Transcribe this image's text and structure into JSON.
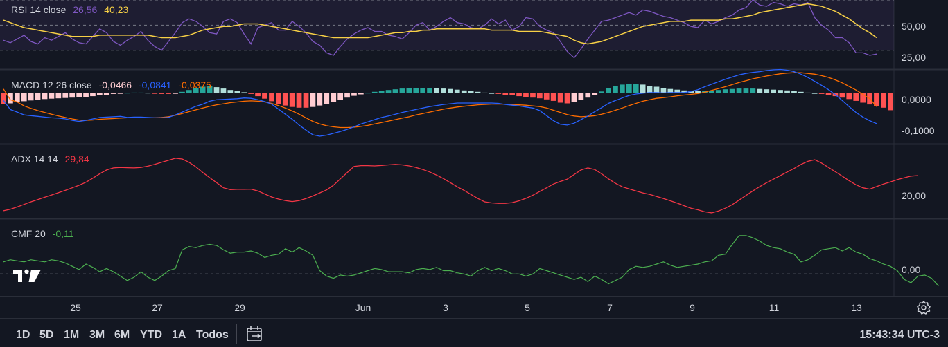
{
  "chart_data": [
    {
      "name": "RSI",
      "type": "line",
      "legend": {
        "label": "RSI 14 close",
        "values": [
          "26,56",
          "40,23"
        ]
      },
      "colors": {
        "rsi": "#7e57c2",
        "ma": "#f7d046",
        "band_fill": "#7e57c2"
      },
      "ylim": [
        15,
        70
      ],
      "yticks": [
        {
          "v": 50,
          "label": "50,00"
        },
        {
          "v": 25,
          "label": "25,00"
        }
      ],
      "bands": [
        30,
        50,
        70
      ],
      "series": [
        {
          "values": [
            38,
            36,
            39,
            42,
            37,
            35,
            40,
            38,
            41,
            44,
            39,
            36,
            35,
            41,
            47,
            44,
            37,
            34,
            38,
            41,
            45,
            38,
            33,
            30,
            37,
            44,
            52,
            55,
            53,
            49,
            44,
            43,
            53,
            55,
            52,
            43,
            35,
            48,
            50,
            52,
            46,
            46,
            53,
            49,
            44,
            37,
            34,
            28,
            26,
            33,
            39,
            43,
            46,
            48,
            45,
            45,
            42,
            41,
            39,
            44,
            50,
            52,
            46,
            49,
            53,
            56,
            52,
            51,
            48,
            47,
            50,
            55,
            51,
            54,
            46,
            49,
            56,
            55,
            49,
            46,
            44,
            37,
            29,
            24,
            31,
            39,
            46,
            53,
            54,
            56,
            58,
            60,
            58,
            62,
            61,
            59,
            57,
            56,
            54,
            52,
            49,
            48,
            54,
            51,
            53,
            56,
            58,
            62,
            64,
            70,
            66,
            65,
            68,
            67,
            65,
            67,
            66,
            68,
            56,
            50,
            46,
            40,
            40,
            36,
            28,
            28,
            26,
            27
          ]
        },
        {
          "values": [
            54,
            52,
            50,
            48,
            47,
            46,
            45,
            44,
            43,
            42,
            41,
            41,
            41,
            41,
            42,
            42,
            42,
            42,
            42,
            42,
            42,
            42,
            41,
            40,
            40,
            40,
            41,
            42,
            44,
            46,
            47,
            48,
            49,
            49,
            50,
            51,
            51,
            51,
            50,
            49,
            48,
            47,
            46,
            45,
            44,
            43,
            42,
            41,
            40,
            40,
            40,
            40,
            40,
            40,
            41,
            42,
            43,
            44,
            44,
            45,
            45,
            46,
            46,
            47,
            47,
            47,
            47,
            47,
            47,
            47,
            47,
            46,
            46,
            46,
            46,
            45,
            45,
            45,
            45,
            44,
            43,
            42,
            41,
            38,
            36,
            35,
            36,
            37,
            39,
            41,
            43,
            45,
            47,
            49,
            50,
            51,
            52,
            53,
            53,
            53,
            54,
            54,
            54,
            54,
            54,
            55,
            55,
            56,
            57,
            58,
            60,
            61,
            62,
            63,
            64,
            65,
            66,
            67,
            66,
            65,
            63,
            61,
            58,
            55,
            51,
            47,
            44,
            40
          ]
        }
      ]
    },
    {
      "name": "MACD",
      "type": "line",
      "legend": {
        "label": "MACD 12 26 close",
        "values": [
          "-0,0466",
          "-0,0841",
          "-0,0375"
        ]
      },
      "colors": {
        "macd": "#2962ff",
        "signal": "#ff6d00",
        "hist_up_strong": "#26a69a",
        "hist_up_weak": "#b2dfdb",
        "hist_down_strong": "#ff5252",
        "hist_down_weak": "#ffcdd2"
      },
      "ylim": [
        -0.14,
        0.065
      ],
      "yticks": [
        {
          "v": 0,
          "label": "0,0000"
        },
        {
          "v": -0.1,
          "label": "-0,1000"
        }
      ],
      "series": [
        {
          "name": "histogram",
          "values": [
            -0.03,
            -0.028,
            -0.025,
            -0.022,
            -0.02,
            -0.018,
            -0.016,
            -0.015,
            -0.014,
            -0.013,
            -0.012,
            -0.011,
            -0.01,
            -0.008,
            -0.006,
            -0.004,
            -0.002,
            -0.001,
            0.001,
            0.002,
            0.002,
            0.001,
            -0.001,
            -0.002,
            -0.002,
            -0.001,
            0.004,
            0.009,
            0.014,
            0.018,
            0.02,
            0.017,
            0.013,
            0.009,
            0.006,
            0.003,
            -0.002,
            -0.008,
            -0.015,
            -0.022,
            -0.029,
            -0.034,
            -0.038,
            -0.04,
            -0.04,
            -0.038,
            -0.034,
            -0.029,
            -0.024,
            -0.018,
            -0.012,
            -0.007,
            -0.003,
            0.001,
            0.004,
            0.007,
            0.009,
            0.011,
            0.013,
            0.014,
            0.015,
            0.015,
            0.015,
            0.014,
            0.013,
            0.012,
            0.01,
            0.008,
            0.006,
            0.004,
            0.002,
            0.0,
            -0.002,
            -0.004,
            -0.006,
            -0.008,
            -0.01,
            -0.012,
            -0.014,
            -0.017,
            -0.021,
            -0.026,
            -0.028,
            -0.024,
            -0.018,
            -0.012,
            -0.004,
            0.005,
            0.014,
            0.02,
            0.024,
            0.026,
            0.026,
            0.024,
            0.021,
            0.018,
            0.015,
            0.012,
            0.01,
            0.008,
            0.007,
            0.006,
            0.006,
            0.007,
            0.009,
            0.011,
            0.012,
            0.013,
            0.013,
            0.013,
            0.012,
            0.011,
            0.01,
            0.009,
            0.008,
            0.006,
            0.004,
            0.002,
            0.0,
            -0.002,
            -0.005,
            -0.008,
            -0.012,
            -0.016,
            -0.021,
            -0.026,
            -0.031,
            -0.035,
            -0.04,
            -0.047
          ]
        },
        {
          "name": "macd",
          "values": [
            -0.02,
            -0.045,
            -0.052,
            -0.06,
            -0.062,
            -0.064,
            -0.066,
            -0.068,
            -0.069,
            -0.071,
            -0.075,
            -0.078,
            -0.075,
            -0.071,
            -0.067,
            -0.066,
            -0.065,
            -0.064,
            -0.067,
            -0.066,
            -0.066,
            -0.067,
            -0.068,
            -0.068,
            -0.067,
            -0.06,
            -0.052,
            -0.044,
            -0.036,
            -0.03,
            -0.022,
            -0.018,
            -0.017,
            -0.016,
            -0.015,
            -0.013,
            -0.014,
            -0.018,
            -0.023,
            -0.03,
            -0.044,
            -0.058,
            -0.072,
            -0.088,
            -0.102,
            -0.115,
            -0.119,
            -0.116,
            -0.111,
            -0.106,
            -0.1,
            -0.093,
            -0.085,
            -0.079,
            -0.073,
            -0.067,
            -0.063,
            -0.058,
            -0.053,
            -0.049,
            -0.045,
            -0.041,
            -0.037,
            -0.034,
            -0.031,
            -0.029,
            -0.027,
            -0.027,
            -0.027,
            -0.027,
            -0.027,
            -0.027,
            -0.028,
            -0.031,
            -0.033,
            -0.035,
            -0.038,
            -0.041,
            -0.048,
            -0.062,
            -0.076,
            -0.086,
            -0.088,
            -0.083,
            -0.073,
            -0.063,
            -0.051,
            -0.04,
            -0.028,
            -0.02,
            -0.013,
            -0.006,
            -0.002,
            0.0,
            0.002,
            0.002,
            0.001,
            0.002,
            0.002,
            0.002,
            0.005,
            0.01,
            0.018,
            0.025,
            0.032,
            0.039,
            0.045,
            0.051,
            0.055,
            0.058,
            0.06,
            0.063,
            0.065,
            0.066,
            0.064,
            0.06,
            0.053,
            0.044,
            0.033,
            0.022,
            0.01,
            -0.004,
            -0.02,
            -0.037,
            -0.053,
            -0.066,
            -0.076,
            -0.084
          ]
        },
        {
          "name": "signal",
          "values": [
            0.012,
            -0.018,
            -0.024,
            -0.035,
            -0.042,
            -0.048,
            -0.053,
            -0.058,
            -0.063,
            -0.067,
            -0.071,
            -0.074,
            -0.075,
            -0.074,
            -0.072,
            -0.071,
            -0.07,
            -0.069,
            -0.068,
            -0.068,
            -0.068,
            -0.068,
            -0.068,
            -0.067,
            -0.065,
            -0.061,
            -0.056,
            -0.051,
            -0.046,
            -0.041,
            -0.036,
            -0.032,
            -0.029,
            -0.026,
            -0.024,
            -0.022,
            -0.021,
            -0.022,
            -0.024,
            -0.028,
            -0.034,
            -0.041,
            -0.049,
            -0.058,
            -0.068,
            -0.078,
            -0.085,
            -0.09,
            -0.093,
            -0.095,
            -0.095,
            -0.094,
            -0.092,
            -0.089,
            -0.085,
            -0.081,
            -0.077,
            -0.073,
            -0.069,
            -0.065,
            -0.06,
            -0.056,
            -0.052,
            -0.048,
            -0.044,
            -0.041,
            -0.038,
            -0.036,
            -0.034,
            -0.032,
            -0.031,
            -0.03,
            -0.03,
            -0.03,
            -0.031,
            -0.032,
            -0.033,
            -0.035,
            -0.037,
            -0.041,
            -0.047,
            -0.053,
            -0.059,
            -0.063,
            -0.065,
            -0.064,
            -0.062,
            -0.058,
            -0.053,
            -0.047,
            -0.041,
            -0.034,
            -0.028,
            -0.022,
            -0.018,
            -0.014,
            -0.012,
            -0.01,
            -0.007,
            -0.005,
            -0.003,
            -0.001,
            0.003,
            0.008,
            0.013,
            0.018,
            0.024,
            0.03,
            0.035,
            0.04,
            0.044,
            0.048,
            0.051,
            0.054,
            0.056,
            0.057,
            0.057,
            0.055,
            0.053,
            0.049,
            0.044,
            0.037,
            0.029,
            0.019,
            0.009,
            -0.003,
            -0.015,
            -0.037
          ]
        }
      ]
    },
    {
      "name": "ADX",
      "type": "line",
      "legend": {
        "label": "ADX 14 14",
        "values": [
          "29,84"
        ]
      },
      "colors": {
        "adx": "#f23645"
      },
      "ylim": [
        13,
        42
      ],
      "yticks": [
        {
          "v": 20,
          "label": "20,00"
        }
      ],
      "series": [
        {
          "values": [
            16.0,
            16.6,
            17.5,
            18.5,
            19.5,
            20.4,
            21.3,
            22.2,
            23.1,
            24.0,
            25.0,
            26.0,
            27.2,
            28.8,
            30.5,
            32.0,
            32.8,
            33.0,
            32.9,
            32.8,
            33.0,
            33.5,
            34.2,
            35.0,
            35.8,
            36.6,
            36.3,
            35.0,
            33.2,
            31.0,
            29.0,
            27.0,
            25.0,
            24.3,
            24.4,
            24.4,
            24.5,
            23.8,
            22.6,
            21.4,
            20.6,
            20.0,
            19.6,
            20.0,
            20.8,
            21.8,
            23.0,
            24.2,
            26.0,
            28.5,
            31.0,
            33.4,
            33.7,
            33.7,
            33.6,
            33.8,
            34.0,
            34.2,
            34.0,
            33.6,
            33.0,
            32.2,
            31.2,
            30.0,
            28.6,
            27.0,
            25.4,
            24.0,
            22.4,
            20.8,
            19.5,
            19.1,
            18.9,
            18.9,
            19.2,
            19.9,
            20.9,
            22.1,
            23.6,
            25.0,
            26.5,
            27.5,
            28.4,
            30.2,
            32.0,
            32.8,
            32.2,
            30.5,
            28.5,
            26.8,
            25.4,
            24.6,
            23.8,
            23.0,
            22.4,
            21.6,
            20.8,
            19.9,
            19.0,
            18.0,
            17.0,
            16.4,
            15.6,
            15.2,
            15.9,
            17.0,
            18.4,
            20.2,
            22.0,
            23.8,
            25.5,
            27.0,
            28.4,
            29.8,
            31.2,
            32.6,
            34.2,
            35.4,
            36.0,
            34.7,
            33.0,
            31.3,
            29.6,
            27.8,
            26.2,
            25.0,
            24.5,
            25.5,
            26.5,
            27.3,
            28.2,
            28.9,
            29.6,
            29.8
          ]
        }
      ]
    },
    {
      "name": "CMF",
      "type": "line",
      "legend": {
        "label": "CMF 20",
        "values": [
          "-0,11"
        ]
      },
      "colors": {
        "cmf": "#4caf50"
      },
      "ylim": [
        -0.2,
        0.5
      ],
      "yticks": [
        {
          "v": 0,
          "label": "0,00"
        }
      ],
      "series": [
        {
          "values": [
            0.11,
            0.13,
            0.12,
            0.11,
            0.13,
            0.12,
            0.11,
            0.13,
            0.12,
            0.1,
            0.07,
            0.04,
            0.09,
            0.06,
            0.02,
            0.05,
            0.02,
            -0.02,
            -0.06,
            -0.03,
            0.02,
            -0.03,
            -0.06,
            -0.02,
            0.03,
            0.05,
            0.22,
            0.25,
            0.24,
            0.26,
            0.27,
            0.26,
            0.22,
            0.19,
            0.2,
            0.2,
            0.21,
            0.19,
            0.15,
            0.17,
            0.18,
            0.23,
            0.2,
            0.24,
            0.21,
            0.17,
            0.03,
            -0.02,
            -0.04,
            -0.01,
            -0.02,
            -0.01,
            0.01,
            0.03,
            0.05,
            0.04,
            0.02,
            0.02,
            0.02,
            0.01,
            0.04,
            0.05,
            0.04,
            0.06,
            0.03,
            0.03,
            0.01,
            0.0,
            -0.02,
            0.03,
            0.06,
            0.03,
            0.05,
            0.03,
            0.0,
            0.0,
            -0.02,
            0.0,
            0.05,
            0.03,
            0.01,
            -0.01,
            -0.03,
            -0.05,
            -0.03,
            -0.07,
            -0.02,
            -0.05,
            -0.09,
            -0.06,
            -0.03,
            0.04,
            0.07,
            0.06,
            0.07,
            0.09,
            0.11,
            0.08,
            0.06,
            0.07,
            0.08,
            0.09,
            0.11,
            0.12,
            0.17,
            0.18,
            0.27,
            0.35,
            0.35,
            0.33,
            0.3,
            0.26,
            0.24,
            0.23,
            0.2,
            0.18,
            0.11,
            0.13,
            0.17,
            0.22,
            0.23,
            0.24,
            0.21,
            0.24,
            0.2,
            0.18,
            0.14,
            0.12,
            0.09,
            0.07,
            0.03,
            -0.05,
            -0.08,
            -0.02,
            -0.01,
            -0.04,
            -0.11
          ]
        }
      ]
    }
  ],
  "x_axis": {
    "count": 128,
    "ticks": [
      {
        "i": 10,
        "label": "25"
      },
      {
        "i": 22,
        "label": "27"
      },
      {
        "i": 34,
        "label": "29"
      },
      {
        "i": 52,
        "label": "Jun"
      },
      {
        "i": 64,
        "label": "3"
      },
      {
        "i": 76,
        "label": "5"
      },
      {
        "i": 88,
        "label": "7"
      },
      {
        "i": 100,
        "label": "9"
      },
      {
        "i": 112,
        "label": "11"
      },
      {
        "i": 124,
        "label": "13"
      }
    ]
  },
  "toolbar": {
    "timeframes": [
      "1D",
      "5D",
      "1M",
      "3M",
      "6M",
      "YTD",
      "1A",
      "Todos"
    ],
    "calendar_icon": "calendar-goto-icon",
    "clock": "15:43:34 UTC-3"
  },
  "icons": {
    "logo": "tradingview-logo",
    "settings": "gear-icon"
  }
}
